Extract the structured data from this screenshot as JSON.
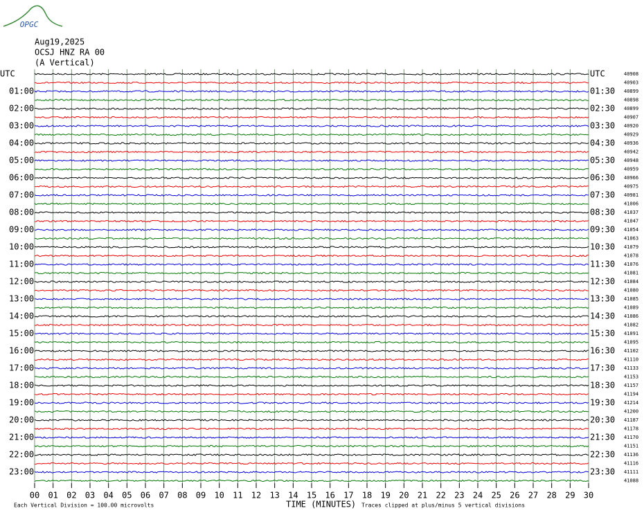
{
  "header": {
    "logo": "OPGC",
    "date": "Aug19,2025",
    "station": "OCSJ HNZ RA 00",
    "component": "(A Vertical)"
  },
  "left_labels": [
    "UTC",
    "01:00",
    "02:00",
    "03:00",
    "04:00",
    "05:00",
    "06:00",
    "07:00",
    "08:00",
    "09:00",
    "10:00",
    "11:00",
    "12:00",
    "13:00",
    "14:00",
    "15:00",
    "16:00",
    "17:00",
    "18:00",
    "19:00",
    "20:00",
    "21:00",
    "22:00",
    "23:00"
  ],
  "right_labels": [
    "UTC",
    "01:30",
    "02:30",
    "03:30",
    "04:30",
    "05:30",
    "06:30",
    "07:30",
    "08:30",
    "09:30",
    "10:30",
    "11:30",
    "12:30",
    "13:30",
    "14:30",
    "15:30",
    "16:30",
    "17:30",
    "18:30",
    "19:30",
    "20:30",
    "21:30",
    "22:30",
    "23:30"
  ],
  "counts": [
    "40908",
    "40903",
    "40899",
    "40898",
    "40899",
    "40907",
    "40920",
    "40929",
    "40936",
    "40942",
    "40948",
    "40959",
    "40966",
    "40975",
    "40981",
    "41006",
    "41037",
    "41047",
    "41054",
    "41063",
    "41079",
    "41078",
    "41076",
    "41081",
    "41084",
    "41080",
    "41085",
    "41089",
    "41086",
    "41082",
    "41091",
    "41095",
    "41102",
    "41110",
    "41133",
    "41153",
    "41157",
    "41194",
    "41214",
    "41200",
    "41187",
    "41178",
    "41170",
    "41151",
    "41136",
    "41116",
    "41111",
    "41088"
  ],
  "x_ticks": [
    "00",
    "01",
    "02",
    "03",
    "04",
    "05",
    "06",
    "07",
    "08",
    "09",
    "10",
    "11",
    "12",
    "13",
    "14",
    "15",
    "16",
    "17",
    "18",
    "19",
    "20",
    "21",
    "22",
    "23",
    "24",
    "25",
    "26",
    "27",
    "28",
    "29",
    "30"
  ],
  "footer": {
    "division_note": "Each Vertical Division =  100.00 microvolts",
    "axis_title": "TIME (MINUTES)",
    "clip_note": "Traces clipped at plus/minus 5 vertical divisions"
  }
}
